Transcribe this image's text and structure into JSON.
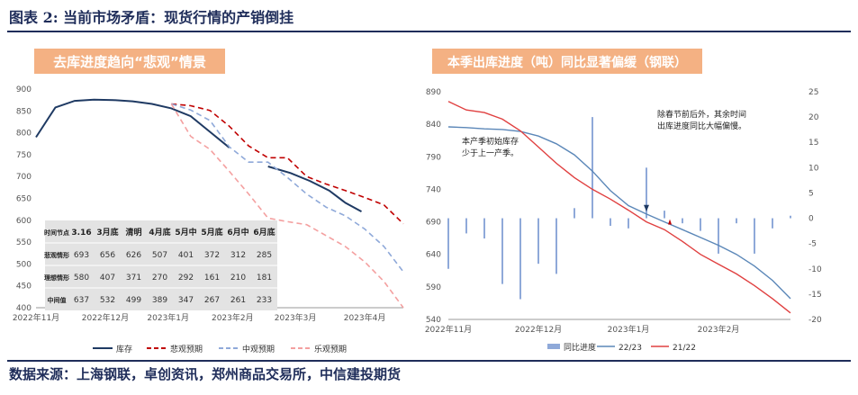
{
  "figure_title": "图表 2: 当前市场矛盾：现货行情的产销倒挂",
  "source": "数据来源：上海钢联，卓创资讯，郑州商品交易所，中信建投期货",
  "colors": {
    "navy": "#1f3a63",
    "red": "#c00000",
    "lightblue": "#8fa9d9",
    "pink": "#f4a0a0",
    "title_bg": "#f4b183",
    "right_title_bg": "#f4b183"
  },
  "chart_data": [
    {
      "type": "line",
      "title": "去库进度趋向“悲观”情景",
      "x_tick_labels": [
        "2022年11月",
        "2022年12月",
        "2023年1月",
        "2023年2月",
        "2023年3月",
        "2023年4月"
      ],
      "ylim": [
        400,
        900
      ],
      "y_ticks": [
        400,
        450,
        500,
        550,
        600,
        650,
        700,
        750,
        800,
        850,
        900
      ],
      "grid": false,
      "legend_position": "bottom",
      "series": [
        {
          "name": "库存",
          "color": "#1f3a63",
          "style": "solid",
          "x": [
            0,
            0.6,
            1.2,
            1.8,
            2.4,
            3.0,
            3.6,
            4.2,
            4.8,
            5.4,
            6.0,
            6.6,
            7.2,
            7.9,
            8.5,
            9.1,
            9.6,
            10.1
          ],
          "y": [
            790,
            858,
            873,
            876,
            875,
            872,
            866,
            856,
            838,
            802,
            766,
            null,
            723,
            708,
            690,
            668,
            640,
            620
          ]
        },
        {
          "name": "悲观预期",
          "color": "#c00000",
          "style": "dashed",
          "x": [
            4.2,
            4.8,
            5.4,
            6.0,
            6.6,
            7.2,
            7.8,
            8.4,
            9.0,
            9.6,
            10.2,
            10.8,
            11.4
          ],
          "y": [
            866,
            862,
            851,
            815,
            770,
            743,
            743,
            700,
            683,
            668,
            652,
            635,
            592
          ]
        },
        {
          "name": "中观预期",
          "color": "#8fa9d9",
          "style": "dashed",
          "x": [
            4.2,
            4.8,
            5.4,
            6.0,
            6.6,
            7.2,
            7.8,
            8.4,
            9.0,
            9.6,
            10.2,
            10.8,
            11.4
          ],
          "y": [
            866,
            852,
            828,
            768,
            733,
            733,
            698,
            660,
            630,
            610,
            580,
            540,
            482
          ]
        },
        {
          "name": "乐观预期",
          "color": "#f4a0a0",
          "style": "dashed",
          "x": [
            4.2,
            4.8,
            5.4,
            6.0,
            6.6,
            7.2,
            7.8,
            8.4,
            9.0,
            9.6,
            10.2,
            10.8,
            11.4
          ],
          "y": [
            866,
            792,
            762,
            712,
            660,
            605,
            597,
            590,
            565,
            540,
            505,
            460,
            400
          ]
        }
      ],
      "table": {
        "columns": [
          "时间节点",
          "3.16",
          "3月底",
          "清明",
          "4月底",
          "5月中",
          "5月底",
          "6月中",
          "6月底"
        ],
        "rows": [
          {
            "label": "悲观情形",
            "values": [
              "693",
              "656",
              "626",
              "507",
              "401",
              "372",
              "312",
              "285"
            ]
          },
          {
            "label": "理想情形",
            "values": [
              "580",
              "407",
              "371",
              "270",
              "292",
              "161",
              "210",
              "181"
            ]
          },
          {
            "label": "中间值",
            "values": [
              "637",
              "532",
              "499",
              "389",
              "347",
              "267",
              "261",
              "233"
            ]
          }
        ]
      }
    },
    {
      "type": "line+bar",
      "title": "本季出库进度（吨）同比显著偏缓（钢联）",
      "x_tick_labels": [
        "2022年11月",
        "2022年12月",
        "2023年1月",
        "2023年2月"
      ],
      "y_left": {
        "ylim": [
          540,
          890
        ],
        "ticks": [
          540,
          590,
          640,
          690,
          740,
          790,
          840,
          890
        ]
      },
      "y_right": {
        "ylim": [
          -20,
          25
        ],
        "ticks": [
          -20,
          -15,
          -10,
          -5,
          0,
          5,
          10,
          15,
          20,
          25
        ]
      },
      "legend_position": "bottom",
      "annotations": [
        "本产季初始库存\n少于上一产季。",
        "除春节前后外，其余时间\n出库进度同比大幅偏慢。"
      ],
      "series": [
        {
          "name": "22/23",
          "color": "#5b87b8",
          "axis": "left",
          "x": [
            0,
            1,
            2,
            3,
            4,
            5,
            6,
            7,
            8,
            9,
            10,
            11,
            12,
            13,
            14,
            15,
            16,
            17,
            18,
            19
          ],
          "y": [
            836,
            835,
            833,
            832,
            829,
            822,
            810,
            793,
            768,
            738,
            715,
            702,
            690,
            678,
            666,
            654,
            640,
            622,
            600,
            572
          ]
        },
        {
          "name": "21/22",
          "color": "#e04040",
          "axis": "left",
          "x": [
            0,
            1,
            2,
            3,
            4,
            5,
            6,
            7,
            8,
            9,
            10,
            11,
            12,
            13,
            14,
            15,
            16,
            17,
            18,
            19
          ],
          "y": [
            875,
            862,
            858,
            848,
            830,
            805,
            780,
            758,
            740,
            725,
            708,
            690,
            678,
            660,
            640,
            625,
            610,
            592,
            572,
            550
          ]
        },
        {
          "name": "同比进度",
          "color": "#8fa9d9",
          "type": "bar",
          "axis": "right",
          "x": [
            0,
            1,
            2,
            3,
            4,
            5,
            6,
            7,
            8,
            9,
            10,
            11,
            12,
            13,
            14,
            15,
            16,
            17,
            18,
            19
          ],
          "y": [
            -10,
            -3,
            -4,
            -13,
            -16,
            -9,
            -11,
            2,
            20,
            -1.5,
            -2,
            10,
            1.5,
            -1,
            -2.5,
            -7,
            -1,
            -7,
            -2,
            0.5
          ]
        }
      ]
    }
  ]
}
